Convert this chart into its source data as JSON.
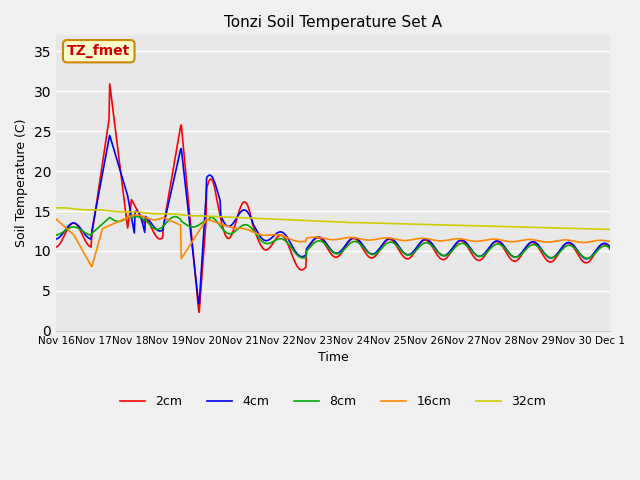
{
  "title": "Tonzi Soil Temperature Set A",
  "xlabel": "Time",
  "ylabel": "Soil Temperature (C)",
  "annotation": "TZ_fmet",
  "ylim": [
    0,
    37
  ],
  "yticks": [
    0,
    5,
    10,
    15,
    20,
    25,
    30,
    35
  ],
  "xtick_labels": [
    "Nov 16",
    "Nov 17",
    "Nov 18",
    "Nov 19",
    "Nov 20",
    "Nov 21",
    "Nov 22",
    "Nov 23",
    "Nov 24",
    "Nov 25",
    "Nov 26",
    "Nov 27",
    "Nov 28",
    "Nov 29",
    "Nov 30",
    "Dec 1"
  ],
  "series_labels": [
    "2cm",
    "4cm",
    "8cm",
    "16cm",
    "32cm"
  ],
  "series_colors": [
    "#ff0000",
    "#0000ff",
    "#00aa00",
    "#ff8800",
    "#cccc00"
  ],
  "bg_color": "#e8e8e8",
  "grid_color": "#ffffff",
  "figsize": [
    6.4,
    4.8
  ],
  "dpi": 100
}
